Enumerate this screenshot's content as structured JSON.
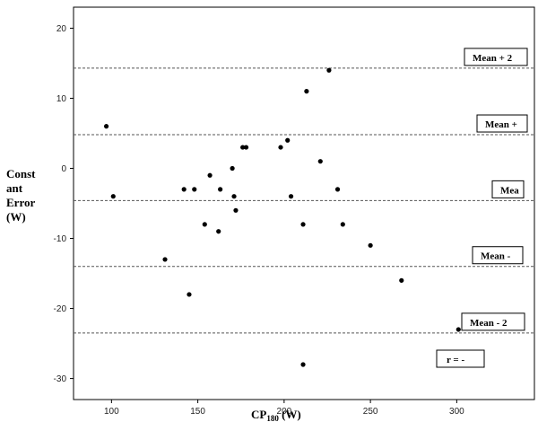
{
  "chart_data": {
    "type": "scatter",
    "xlabel_main": "CP",
    "xlabel_sub": "180",
    "xlabel_unit": " (W)",
    "ylabel_lines": [
      "Const",
      "ant",
      "Error",
      "(W)"
    ],
    "xlim": [
      78,
      345
    ],
    "ylim": [
      -33,
      23
    ],
    "xticks": [
      100,
      150,
      200,
      250,
      300
    ],
    "yticks": [
      20,
      10,
      0,
      -10,
      -20,
      -30
    ],
    "x_tick_labels": [
      "100",
      "150",
      "200",
      "250",
      "300"
    ],
    "y_tick_labels": [
      "20",
      "10",
      "0",
      "-10",
      "-20",
      "-30"
    ],
    "grid": false,
    "series": [
      {
        "points": [
          {
            "x": 97,
            "y": 6
          },
          {
            "x": 101,
            "y": -4
          },
          {
            "x": 131,
            "y": -13
          },
          {
            "x": 142,
            "y": -3
          },
          {
            "x": 145,
            "y": -18
          },
          {
            "x": 148,
            "y": -3
          },
          {
            "x": 154,
            "y": -8
          },
          {
            "x": 157,
            "y": -1
          },
          {
            "x": 162,
            "y": -9
          },
          {
            "x": 163,
            "y": -3
          },
          {
            "x": 170,
            "y": 0
          },
          {
            "x": 171,
            "y": -4
          },
          {
            "x": 172,
            "y": -6
          },
          {
            "x": 176,
            "y": 3
          },
          {
            "x": 178,
            "y": 3
          },
          {
            "x": 198,
            "y": 3
          },
          {
            "x": 202,
            "y": 4
          },
          {
            "x": 204,
            "y": -4
          },
          {
            "x": 211,
            "y": -8
          },
          {
            "x": 211,
            "y": -28
          },
          {
            "x": 213,
            "y": 11
          },
          {
            "x": 221,
            "y": 1
          },
          {
            "x": 226,
            "y": 14
          },
          {
            "x": 231,
            "y": -3
          },
          {
            "x": 234,
            "y": -8
          },
          {
            "x": 250,
            "y": -11
          },
          {
            "x": 268,
            "y": -16
          },
          {
            "x": 301,
            "y": -23
          }
        ]
      }
    ],
    "reference_lines": [
      {
        "y": 14.3,
        "label": "Mean + 2"
      },
      {
        "y": 4.8,
        "label": "Mean +"
      },
      {
        "y": -4.6,
        "label": "Mea"
      },
      {
        "y": -14.0,
        "label": "Mean -"
      },
      {
        "y": -23.5,
        "label": "Mean - 2"
      }
    ],
    "annotation": "r = -"
  }
}
